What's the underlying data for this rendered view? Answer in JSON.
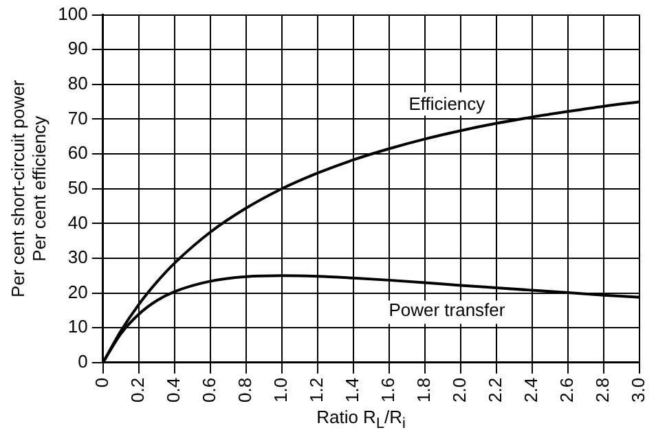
{
  "chart_data": {
    "type": "line",
    "xlabel": "Ratio R$_{L}$/R$_{i}$",
    "ylabel": "Per cent short-circuit power\nPer cent efficiency",
    "x": [
      0,
      0.1,
      0.2,
      0.3,
      0.4,
      0.6,
      0.8,
      1.0,
      1.2,
      1.4,
      1.6,
      1.8,
      2.0,
      2.2,
      2.4,
      2.6,
      2.8,
      3.0
    ],
    "series": [
      {
        "name": "Efficiency",
        "color": "#000000",
        "values": [
          0,
          9.1,
          16.7,
          23.1,
          28.6,
          37.5,
          44.4,
          50,
          54.5,
          58.3,
          61.5,
          64.3,
          66.7,
          68.8,
          70.6,
          72.2,
          73.7,
          75
        ]
      },
      {
        "name": "Power transfer",
        "color": "#000000",
        "values": [
          0,
          8.3,
          13.9,
          17.8,
          20.4,
          23.4,
          24.7,
          25,
          24.8,
          24.3,
          23.7,
          23,
          22.2,
          21.5,
          20.8,
          20.1,
          19.4,
          18.8
        ]
      }
    ],
    "xlim": [
      0,
      3
    ],
    "xticks": [
      0,
      0.2,
      0.4,
      0.6,
      0.8,
      {
        "value": 1,
        "label": "1.0"
      },
      1.2,
      1.4,
      1.6,
      1.8,
      {
        "value": 2,
        "label": "2.0"
      },
      2.2,
      2.4,
      2.6,
      2.8,
      {
        "value": 3,
        "label": "3.0"
      }
    ],
    "ylim": [
      0,
      100
    ],
    "yticks": [
      0,
      10,
      20,
      30,
      40,
      50,
      60,
      70,
      80,
      90,
      100
    ],
    "grid": true,
    "legend": false,
    "marker": "none",
    "line_style": "solid"
  }
}
